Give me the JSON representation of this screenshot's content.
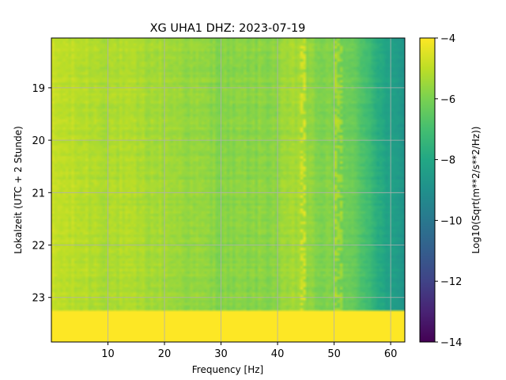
{
  "chart_data": {
    "type": "heatmap",
    "title": "XG UHA1  DHZ: 2023-07-19",
    "xlabel": "Frequency [Hz]",
    "ylabel": "Lokalzeit (UTC + 2 Stunde)",
    "colorbar_label": "Log10(Sqrt(m**2/s**2/Hz))",
    "xlim": [
      0,
      62.5
    ],
    "ylim_hours": [
      18.05,
      23.85
    ],
    "x_ticks": [
      10,
      20,
      30,
      40,
      50,
      60
    ],
    "y_ticks": [
      19,
      20,
      21,
      22,
      23
    ],
    "colorbar_range": [
      -14,
      -4
    ],
    "colorbar_ticks": [
      -4,
      -6,
      -8,
      -10,
      -12,
      -14
    ],
    "colormap": "viridis",
    "grid": true,
    "data_end_hour": 23.25,
    "fill_value_after_end": -4,
    "spectral_level_by_frequency": {
      "frequency_hz": [
        0,
        2,
        5,
        10,
        15,
        20,
        25,
        30,
        35,
        40,
        44,
        46,
        50,
        52,
        54,
        56,
        58,
        60,
        62.5
      ],
      "log10_psd": [
        -4.9,
        -5.0,
        -5.1,
        -5.2,
        -5.3,
        -5.4,
        -5.6,
        -5.8,
        -5.8,
        -5.7,
        -5.3,
        -5.8,
        -6.0,
        -6.2,
        -6.5,
        -7.0,
        -7.8,
        -8.4,
        -8.8
      ]
    },
    "spectral_lines_hz": [
      44.5,
      50.8
    ]
  }
}
